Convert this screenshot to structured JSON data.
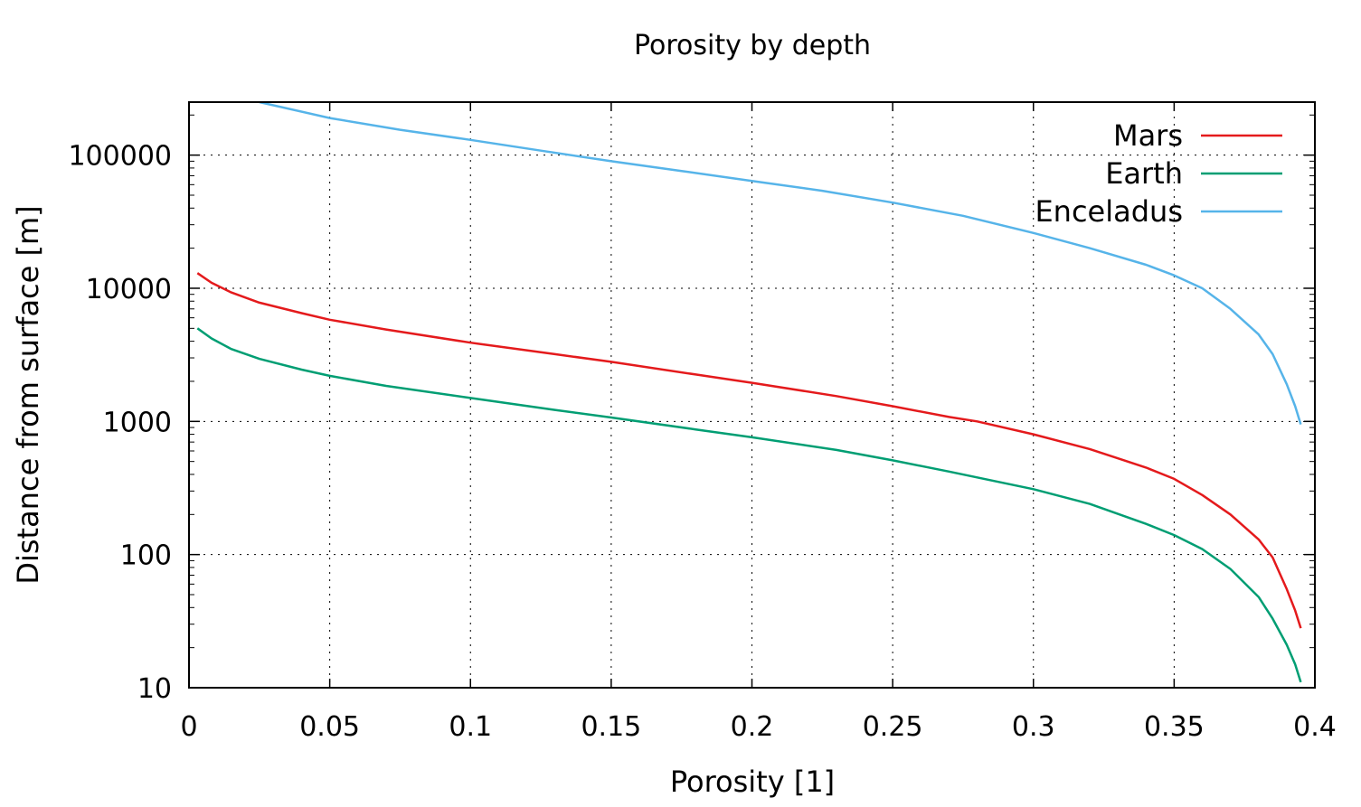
{
  "chart_data": {
    "type": "line",
    "title": "Porosity by depth",
    "xlabel": "Porosity [1]",
    "ylabel": "Distance from surface  [m]",
    "xlim": [
      0,
      0.4
    ],
    "ylim": [
      10,
      250000
    ],
    "yscale": "log",
    "grid": true,
    "legend_position": "top-right",
    "x_ticks": [
      {
        "value": 0,
        "label": "0"
      },
      {
        "value": 0.05,
        "label": "0.05"
      },
      {
        "value": 0.1,
        "label": "0.1"
      },
      {
        "value": 0.15,
        "label": "0.15"
      },
      {
        "value": 0.2,
        "label": "0.2"
      },
      {
        "value": 0.25,
        "label": "0.25"
      },
      {
        "value": 0.3,
        "label": "0.3"
      },
      {
        "value": 0.35,
        "label": "0.35"
      },
      {
        "value": 0.4,
        "label": "0.4"
      }
    ],
    "y_ticks": [
      {
        "value": 10,
        "label": "10"
      },
      {
        "value": 100,
        "label": "100"
      },
      {
        "value": 1000,
        "label": "1000"
      },
      {
        "value": 10000,
        "label": "10000"
      },
      {
        "value": 100000,
        "label": "100000"
      }
    ],
    "series": [
      {
        "name": "Mars",
        "color": "#e41a1c",
        "x": [
          0.003,
          0.008,
          0.015,
          0.025,
          0.04,
          0.05,
          0.07,
          0.1,
          0.13,
          0.15,
          0.18,
          0.2,
          0.23,
          0.25,
          0.27,
          0.28,
          0.3,
          0.32,
          0.34,
          0.35,
          0.36,
          0.37,
          0.38,
          0.385,
          0.39,
          0.393,
          0.395
        ],
        "y": [
          13000,
          11000,
          9300,
          7800,
          6500,
          5800,
          4900,
          3900,
          3200,
          2800,
          2250,
          1950,
          1550,
          1300,
          1080,
          1000,
          800,
          620,
          450,
          370,
          280,
          200,
          130,
          95,
          55,
          38,
          28
        ]
      },
      {
        "name": "Earth",
        "color": "#009e73",
        "x": [
          0.003,
          0.008,
          0.015,
          0.025,
          0.04,
          0.05,
          0.07,
          0.1,
          0.13,
          0.15,
          0.18,
          0.2,
          0.23,
          0.25,
          0.27,
          0.3,
          0.32,
          0.34,
          0.35,
          0.36,
          0.37,
          0.38,
          0.385,
          0.39,
          0.393,
          0.395
        ],
        "y": [
          5000,
          4200,
          3500,
          2950,
          2450,
          2200,
          1850,
          1500,
          1220,
          1070,
          870,
          760,
          610,
          510,
          420,
          310,
          240,
          170,
          140,
          110,
          78,
          48,
          33,
          21,
          15,
          11
        ]
      },
      {
        "name": "Enceladus",
        "color": "#56b4e9",
        "x": [
          0.025,
          0.05,
          0.075,
          0.1,
          0.125,
          0.15,
          0.175,
          0.2,
          0.225,
          0.25,
          0.275,
          0.3,
          0.32,
          0.34,
          0.35,
          0.36,
          0.37,
          0.38,
          0.385,
          0.39,
          0.393,
          0.395
        ],
        "y": [
          250000,
          190000,
          155000,
          130000,
          108000,
          90000,
          76000,
          64000,
          54000,
          44000,
          35000,
          26000,
          20000,
          15000,
          12500,
          10000,
          7000,
          4500,
          3200,
          1900,
          1300,
          950
        ]
      }
    ]
  }
}
